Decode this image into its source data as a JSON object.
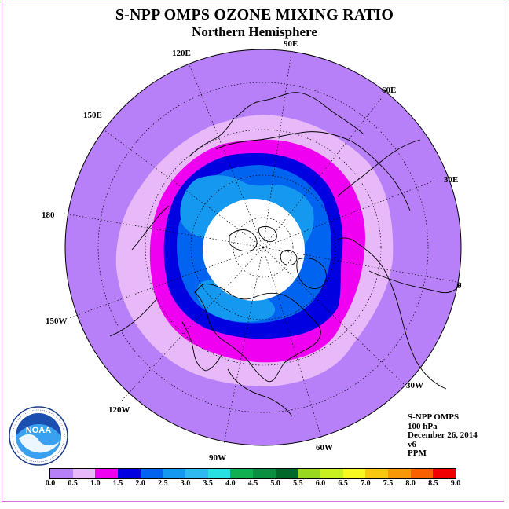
{
  "title": "S-NPP OMPS OZONE MIXING RATIO",
  "subtitle": "Northern Hemisphere",
  "longitude_labels": [
    "120E",
    "90E",
    "60E",
    "30E",
    "150E",
    "180",
    "0",
    "150W",
    "30W",
    "120W",
    "60W",
    "90W"
  ],
  "info": {
    "instrument": "S-NPP OMPS",
    "level": "100 hPa",
    "date": "December 26, 2014",
    "version": "v6",
    "units": "PPM"
  },
  "colorbar": {
    "ticks": [
      "0.0",
      "0.5",
      "1.0",
      "1.5",
      "2.0",
      "2.5",
      "3.0",
      "3.5",
      "4.0",
      "4.5",
      "5.0",
      "5.5",
      "6.0",
      "6.5",
      "7.0",
      "7.5",
      "8.0",
      "8.5",
      "9.0"
    ],
    "colors": [
      "#b880f8",
      "#e8b8f8",
      "#f000f0",
      "#0000e0",
      "#0064f0",
      "#1498f0",
      "#30b8f0",
      "#28e0e0",
      "#10b050",
      "#089040",
      "#006828",
      "#98d820",
      "#c8f020",
      "#f8f820",
      "#f8c810",
      "#f89808",
      "#f86000",
      "#f00000",
      "#8c5a3c"
    ]
  },
  "map_colors": {
    "background_field": "#b880f8",
    "band_0_5": "#e8b8f8",
    "band_1_0": "#f000f0",
    "band_1_5": "#0000e0",
    "band_2_0": "#0064f0",
    "band_2_5": "#1498f0",
    "polar_no_data": "#ffffff",
    "border": "#e070e0"
  }
}
